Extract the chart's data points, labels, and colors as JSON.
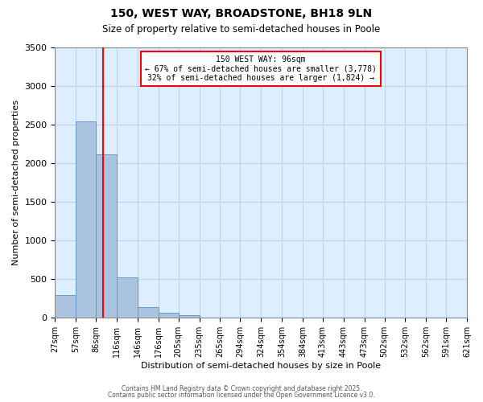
{
  "title1": "150, WEST WAY, BROADSTONE, BH18 9LN",
  "title2": "Size of property relative to semi-detached houses in Poole",
  "xlabel": "Distribution of semi-detached houses by size in Poole",
  "ylabel": "Number of semi-detached properties",
  "bin_edges": [
    27,
    57,
    86,
    116,
    146,
    176,
    205,
    235,
    265,
    294,
    324,
    354,
    384,
    413,
    443,
    473,
    502,
    532,
    562,
    591,
    621
  ],
  "bar_heights": [
    300,
    2540,
    2120,
    520,
    140,
    65,
    30,
    0,
    0,
    0,
    0,
    0,
    0,
    0,
    0,
    0,
    0,
    0,
    0,
    0
  ],
  "bar_color": "#aac4e0",
  "bar_edge_color": "#6699cc",
  "grid_color": "#c0d4ea",
  "plot_bg_color": "#ddeeff",
  "fig_bg_color": "#ffffff",
  "property_line_x": 96,
  "property_line_color": "red",
  "annotation_title": "150 WEST WAY: 96sqm",
  "annotation_line1": "← 67% of semi-detached houses are smaller (3,778)",
  "annotation_line2": "32% of semi-detached houses are larger (1,824) →",
  "annotation_box_color": "red",
  "ylim": [
    0,
    3500
  ],
  "yticks": [
    0,
    500,
    1000,
    1500,
    2000,
    2500,
    3000,
    3500
  ],
  "footer1": "Contains HM Land Registry data © Crown copyright and database right 2025.",
  "footer2": "Contains public sector information licensed under the Open Government Licence v3.0."
}
